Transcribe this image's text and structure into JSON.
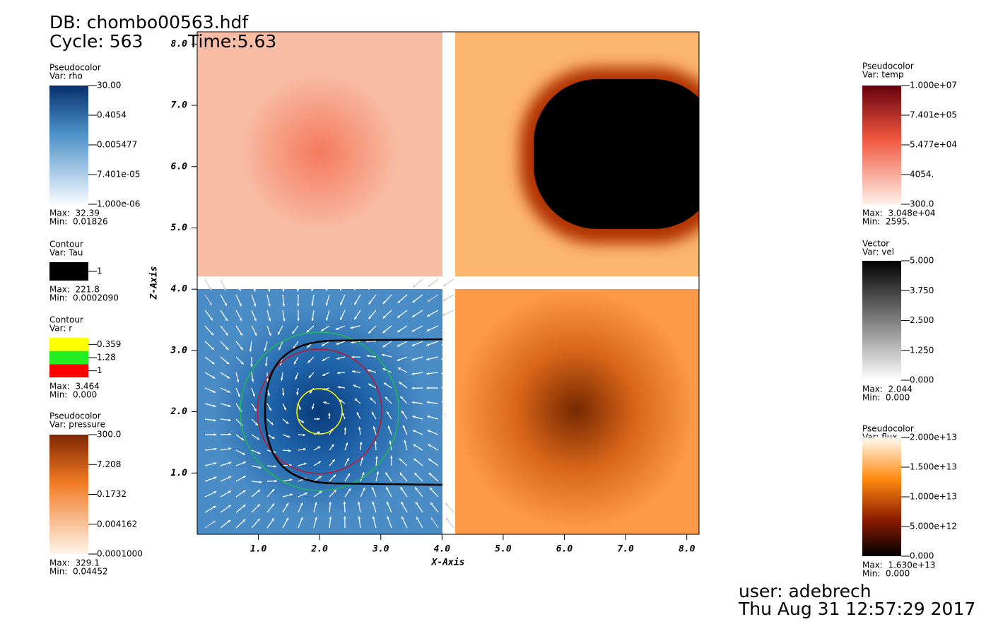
{
  "header": {
    "db": "DB: chombo00563.hdf",
    "cycle": "Cycle: 563",
    "time": "Time:5.63"
  },
  "plot": {
    "x_label": "X-Axis",
    "y_label": "Z-Axis",
    "xlim": [
      0,
      8.2
    ],
    "ylim": [
      0,
      8.2
    ],
    "xticks": [
      {
        "value": 1,
        "label": "1.0"
      },
      {
        "value": 2,
        "label": "2.0"
      },
      {
        "value": 3,
        "label": "3.0"
      },
      {
        "value": 4,
        "label": "4.0"
      },
      {
        "value": 5,
        "label": "5.0"
      },
      {
        "value": 6,
        "label": "6.0"
      },
      {
        "value": 7,
        "label": "7.0"
      },
      {
        "value": 8,
        "label": "8.0"
      }
    ],
    "yticks": [
      {
        "value": 1,
        "label": "1.0"
      },
      {
        "value": 2,
        "label": "2.0"
      },
      {
        "value": 3,
        "label": "3.0"
      },
      {
        "value": 4,
        "label": "4.0"
      },
      {
        "value": 5,
        "label": "5.0"
      },
      {
        "value": 6,
        "label": "6.0"
      },
      {
        "value": 7,
        "label": "7.0"
      },
      {
        "value": 8,
        "label": "8.0"
      }
    ]
  },
  "legends": [
    {
      "kind": "Pseudocolor",
      "var": "Var: rho",
      "labels": [
        "30.00",
        "0.4054",
        "0.005477",
        "7.401e-05",
        "1.000e-06"
      ],
      "max": "Max:  32.39",
      "min": "Min:  0.01826"
    },
    {
      "kind": "Contour",
      "var": "Var: Tau",
      "labels": [
        "1"
      ],
      "max": "Max:  221.8",
      "min": "Min:  0.0002090"
    },
    {
      "kind": "Contour",
      "var": "Var: r",
      "labels": [
        "0.359",
        "1.28",
        "1"
      ],
      "max": "Max:  3.464",
      "min": "Min:  0.000"
    },
    {
      "kind": "Pseudocolor",
      "var": "Var: pressure",
      "labels": [
        "300.0",
        "7.208",
        "0.1732",
        "0.004162",
        "0.0001000"
      ],
      "max": "Max:  329.1",
      "min": "Min:  0.04452"
    },
    {
      "kind": "Pseudocolor",
      "var": "Var: temp",
      "labels": [
        "1.000e+07",
        "7.401e+05",
        "5.477e+04",
        "4054.",
        "300.0"
      ],
      "max": "Max:  3.048e+04",
      "min": "Min:  2595."
    },
    {
      "kind": "Vector",
      "var": "Var: vel",
      "labels": [
        "5.000",
        "3.750",
        "2.500",
        "1.250",
        "0.000"
      ],
      "max": "Max:  2.044",
      "min": "Min:  0.000"
    },
    {
      "kind": "Pseudocolor",
      "var": "Var: flux",
      "labels": [
        "2.000e+13",
        "1.500e+13",
        "1.000e+13",
        "5.000e+12",
        "0.000"
      ],
      "max": "Max:  1.630e+13",
      "min": "Min:  0.000"
    }
  ],
  "user": "user: adebrech",
  "date": "Thu Aug 31 12:57:29 2017"
}
